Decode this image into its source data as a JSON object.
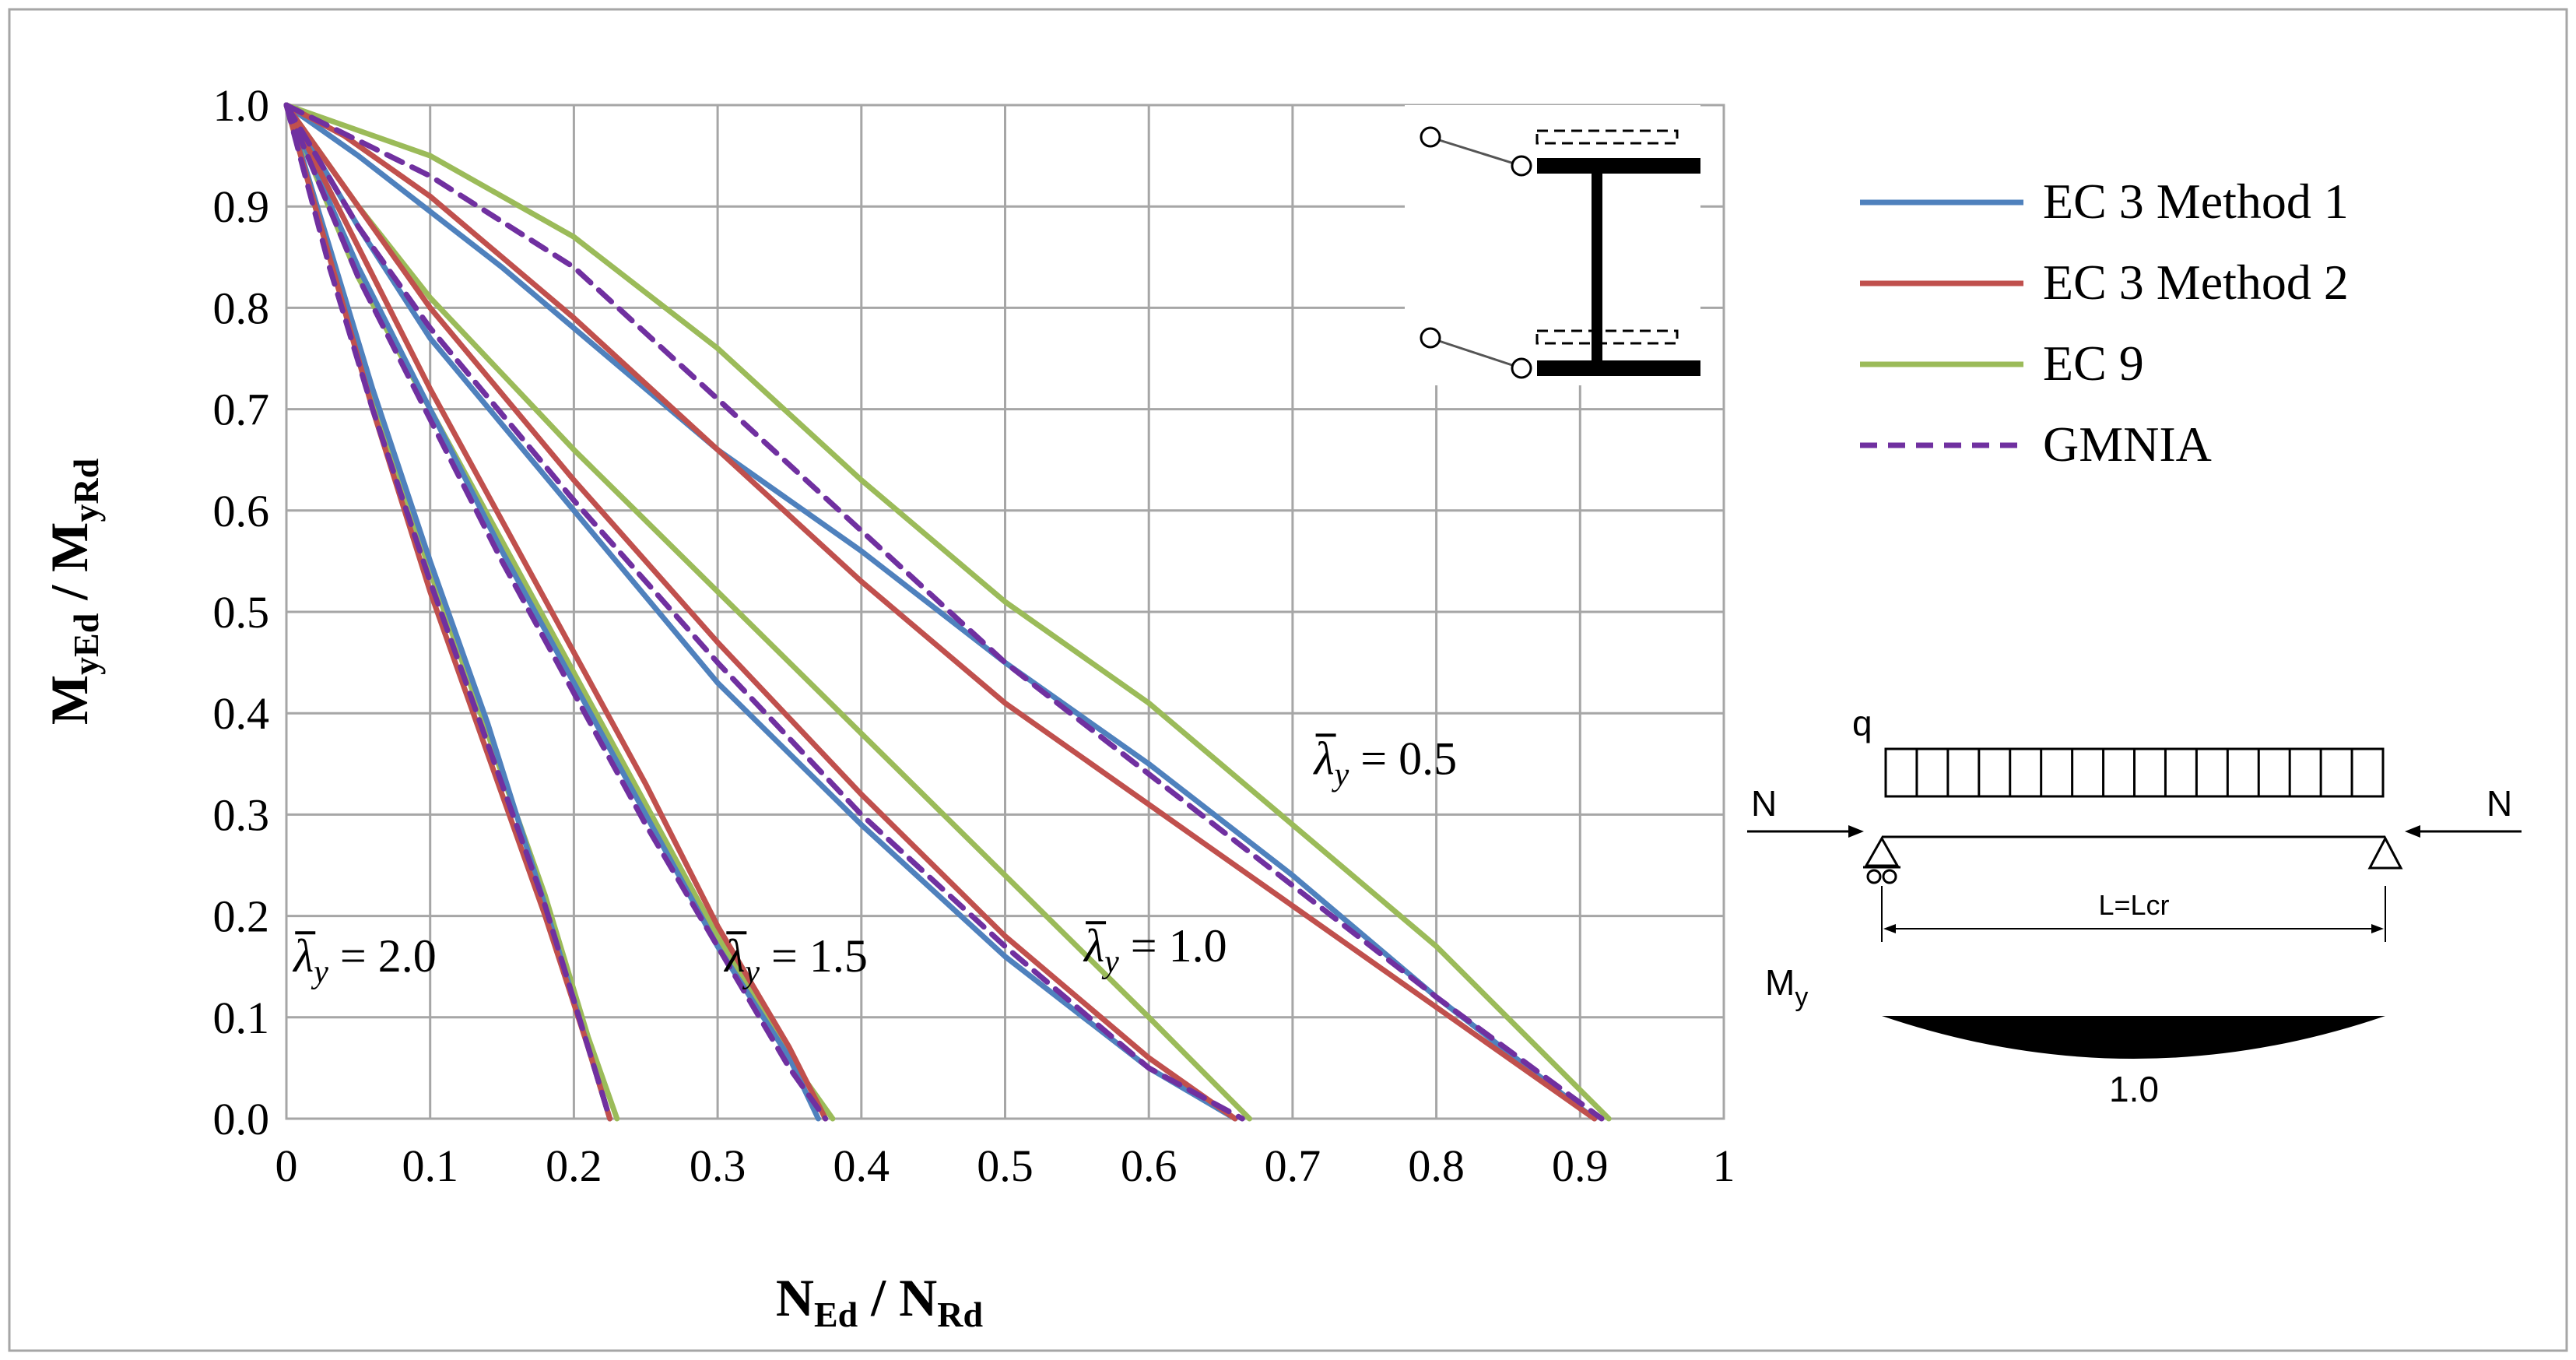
{
  "chart_data": {
    "type": "line",
    "xlabel": {
      "main": "N",
      "sub1": "Ed",
      "sep": " / ",
      "main2": "N",
      "sub2": "Rd"
    },
    "ylabel": {
      "main": "M",
      "sub1": "yEd",
      "sep": " / ",
      "main2": "M",
      "sub2": "yRd"
    },
    "xlim": [
      0,
      1
    ],
    "ylim": [
      0,
      1
    ],
    "xticks": [
      0,
      0.1,
      0.2,
      0.3,
      0.4,
      0.5,
      0.6,
      0.7,
      0.8,
      0.9,
      1
    ],
    "xtick_labels": [
      "0",
      "0.1",
      "0.2",
      "0.3",
      "0.4",
      "0.5",
      "0.6",
      "0.7",
      "0.8",
      "0.9",
      "1"
    ],
    "yticks": [
      0,
      0.1,
      0.2,
      0.3,
      0.4,
      0.5,
      0.6,
      0.7,
      0.8,
      0.9,
      1.0
    ],
    "ytick_labels": [
      "0.0",
      "0.1",
      "0.2",
      "0.3",
      "0.4",
      "0.5",
      "0.6",
      "0.7",
      "0.8",
      "0.9",
      "1.0"
    ],
    "grid": true,
    "legend_position": "right",
    "legend": [
      {
        "label": "EC 3 Method 1",
        "color": "#4f81bd",
        "dash": false
      },
      {
        "label": "EC 3 Method 2",
        "color": "#c0504d",
        "dash": false
      },
      {
        "label": "EC 9",
        "color": "#9bbb59",
        "dash": false
      },
      {
        "label": "GMNIA",
        "color": "#7030a0",
        "dash": true
      }
    ],
    "annotations": [
      {
        "prefix": "λ",
        "sub": "y",
        "value": " = 0.5",
        "x": 0.715,
        "y": 0.34
      },
      {
        "prefix": "λ",
        "sub": "y",
        "value": " = 1.0",
        "x": 0.555,
        "y": 0.155
      },
      {
        "prefix": "λ",
        "sub": "y",
        "value": " = 1.5",
        "x": 0.305,
        "y": 0.145
      },
      {
        "prefix": "λ",
        "sub": "y",
        "value": " = 2.0",
        "x": 0.005,
        "y": 0.145
      }
    ],
    "series": [
      {
        "name": "EC 3 Method 1",
        "group": "0.5",
        "points": [
          [
            0.0,
            1.0
          ],
          [
            0.05,
            0.95
          ],
          [
            0.15,
            0.84
          ],
          [
            0.3,
            0.66
          ],
          [
            0.4,
            0.56
          ],
          [
            0.5,
            0.45
          ],
          [
            0.6,
            0.35
          ],
          [
            0.7,
            0.24
          ],
          [
            0.8,
            0.12
          ],
          [
            0.91,
            0.0
          ]
        ]
      },
      {
        "name": "EC 3 Method 2",
        "group": "0.5",
        "points": [
          [
            0.0,
            1.0
          ],
          [
            0.04,
            0.97
          ],
          [
            0.1,
            0.91
          ],
          [
            0.2,
            0.79
          ],
          [
            0.3,
            0.66
          ],
          [
            0.4,
            0.53
          ],
          [
            0.5,
            0.41
          ],
          [
            0.6,
            0.31
          ],
          [
            0.7,
            0.21
          ],
          [
            0.8,
            0.11
          ],
          [
            0.91,
            0.0
          ]
        ]
      },
      {
        "name": "EC 9",
        "group": "0.5",
        "points": [
          [
            0.0,
            1.0
          ],
          [
            0.1,
            0.95
          ],
          [
            0.2,
            0.87
          ],
          [
            0.3,
            0.76
          ],
          [
            0.4,
            0.63
          ],
          [
            0.5,
            0.51
          ],
          [
            0.6,
            0.41
          ],
          [
            0.7,
            0.29
          ],
          [
            0.8,
            0.17
          ],
          [
            0.92,
            0.0
          ]
        ]
      },
      {
        "name": "GMNIA",
        "group": "0.5",
        "points": [
          [
            0.0,
            1.0
          ],
          [
            0.1,
            0.93
          ],
          [
            0.2,
            0.84
          ],
          [
            0.3,
            0.71
          ],
          [
            0.4,
            0.58
          ],
          [
            0.5,
            0.45
          ],
          [
            0.6,
            0.34
          ],
          [
            0.7,
            0.23
          ],
          [
            0.8,
            0.12
          ],
          [
            0.915,
            0.0
          ]
        ]
      },
      {
        "name": "EC 3 Method 1",
        "group": "1.0",
        "points": [
          [
            0.0,
            1.0
          ],
          [
            0.05,
            0.88
          ],
          [
            0.1,
            0.77
          ],
          [
            0.2,
            0.6
          ],
          [
            0.3,
            0.43
          ],
          [
            0.4,
            0.29
          ],
          [
            0.5,
            0.16
          ],
          [
            0.6,
            0.05
          ],
          [
            0.66,
            0.0
          ]
        ]
      },
      {
        "name": "EC 3 Method 2",
        "group": "1.0",
        "points": [
          [
            0.0,
            1.0
          ],
          [
            0.04,
            0.92
          ],
          [
            0.1,
            0.8
          ],
          [
            0.2,
            0.63
          ],
          [
            0.3,
            0.47
          ],
          [
            0.4,
            0.32
          ],
          [
            0.5,
            0.18
          ],
          [
            0.6,
            0.06
          ],
          [
            0.66,
            0.0
          ]
        ]
      },
      {
        "name": "EC 9",
        "group": "1.0",
        "points": [
          [
            0.0,
            1.0
          ],
          [
            0.05,
            0.9
          ],
          [
            0.1,
            0.81
          ],
          [
            0.2,
            0.66
          ],
          [
            0.3,
            0.52
          ],
          [
            0.4,
            0.38
          ],
          [
            0.5,
            0.24
          ],
          [
            0.6,
            0.1
          ],
          [
            0.67,
            0.0
          ]
        ]
      },
      {
        "name": "GMNIA",
        "group": "1.0",
        "points": [
          [
            0.0,
            1.0
          ],
          [
            0.05,
            0.88
          ],
          [
            0.1,
            0.78
          ],
          [
            0.2,
            0.61
          ],
          [
            0.3,
            0.45
          ],
          [
            0.4,
            0.3
          ],
          [
            0.5,
            0.17
          ],
          [
            0.6,
            0.05
          ],
          [
            0.665,
            0.0
          ]
        ]
      },
      {
        "name": "EC 3 Method 1",
        "group": "1.5",
        "points": [
          [
            0.0,
            1.0
          ],
          [
            0.05,
            0.84
          ],
          [
            0.1,
            0.7
          ],
          [
            0.15,
            0.56
          ],
          [
            0.2,
            0.43
          ],
          [
            0.25,
            0.3
          ],
          [
            0.3,
            0.17
          ],
          [
            0.35,
            0.06
          ],
          [
            0.37,
            0.0
          ]
        ]
      },
      {
        "name": "EC 3 Method 2",
        "group": "1.5",
        "points": [
          [
            0.0,
            1.0
          ],
          [
            0.05,
            0.86
          ],
          [
            0.1,
            0.72
          ],
          [
            0.15,
            0.59
          ],
          [
            0.2,
            0.46
          ],
          [
            0.25,
            0.33
          ],
          [
            0.3,
            0.19
          ],
          [
            0.35,
            0.07
          ],
          [
            0.375,
            0.0
          ]
        ]
      },
      {
        "name": "EC 9",
        "group": "1.5",
        "points": [
          [
            0.0,
            1.0
          ],
          [
            0.05,
            0.83
          ],
          [
            0.1,
            0.7
          ],
          [
            0.15,
            0.57
          ],
          [
            0.2,
            0.44
          ],
          [
            0.25,
            0.31
          ],
          [
            0.3,
            0.18
          ],
          [
            0.35,
            0.06
          ],
          [
            0.38,
            0.0
          ]
        ]
      },
      {
        "name": "GMNIA",
        "group": "1.5",
        "points": [
          [
            0.0,
            1.0
          ],
          [
            0.05,
            0.83
          ],
          [
            0.1,
            0.69
          ],
          [
            0.15,
            0.55
          ],
          [
            0.2,
            0.42
          ],
          [
            0.25,
            0.29
          ],
          [
            0.3,
            0.17
          ],
          [
            0.35,
            0.05
          ],
          [
            0.375,
            0.0
          ]
        ]
      },
      {
        "name": "EC 3 Method 1",
        "group": "2.0",
        "points": [
          [
            0.0,
            1.0
          ],
          [
            0.03,
            0.86
          ],
          [
            0.06,
            0.72
          ],
          [
            0.1,
            0.55
          ],
          [
            0.14,
            0.39
          ],
          [
            0.18,
            0.21
          ],
          [
            0.21,
            0.07
          ],
          [
            0.225,
            0.0
          ]
        ]
      },
      {
        "name": "EC 3 Method 2",
        "group": "2.0",
        "points": [
          [
            0.0,
            1.0
          ],
          [
            0.03,
            0.85
          ],
          [
            0.06,
            0.7
          ],
          [
            0.1,
            0.52
          ],
          [
            0.14,
            0.36
          ],
          [
            0.18,
            0.2
          ],
          [
            0.21,
            0.07
          ],
          [
            0.225,
            0.0
          ]
        ]
      },
      {
        "name": "EC 9",
        "group": "2.0",
        "points": [
          [
            0.0,
            1.0
          ],
          [
            0.03,
            0.85
          ],
          [
            0.06,
            0.71
          ],
          [
            0.1,
            0.54
          ],
          [
            0.14,
            0.38
          ],
          [
            0.18,
            0.22
          ],
          [
            0.21,
            0.08
          ],
          [
            0.23,
            0.0
          ]
        ]
      },
      {
        "name": "GMNIA",
        "group": "2.0",
        "points": [
          [
            0.0,
            1.0
          ],
          [
            0.03,
            0.84
          ],
          [
            0.06,
            0.7
          ],
          [
            0.1,
            0.53
          ],
          [
            0.14,
            0.37
          ],
          [
            0.18,
            0.21
          ],
          [
            0.21,
            0.07
          ],
          [
            0.225,
            0.0
          ]
        ]
      }
    ]
  },
  "diagram": {
    "load_label": "q",
    "axial_left": "N",
    "axial_right": "N",
    "span_label": "L=Lcr",
    "moment_label_main": "M",
    "moment_label_sub": "y",
    "moment_value": "1.0"
  }
}
